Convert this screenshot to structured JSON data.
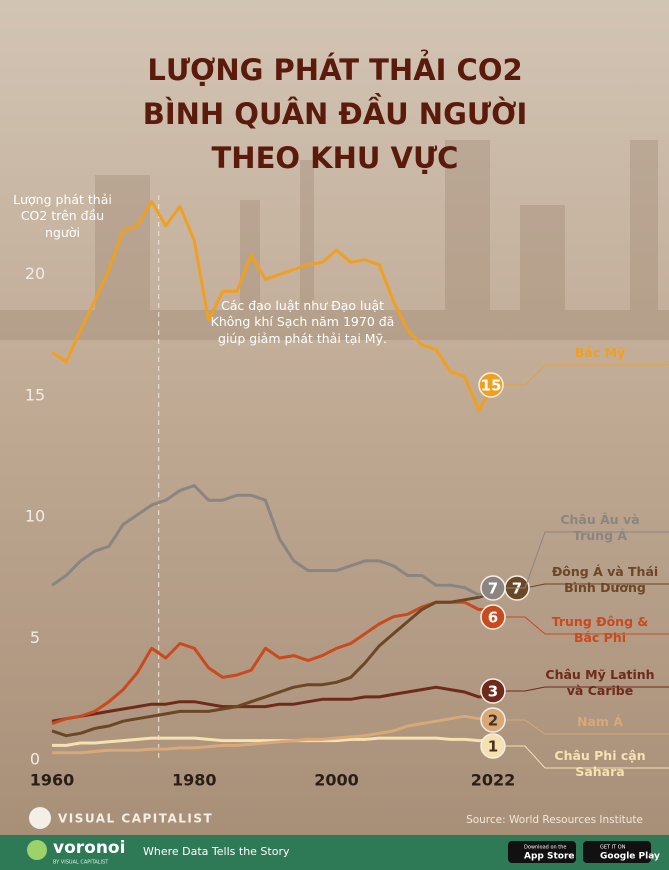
{
  "chart_data": {
    "type": "line",
    "title_lines": [
      "LƯỢNG PHÁT THẢI CO2",
      "BÌNH QUÂN ĐẦU NGƯỜI",
      "THEO KHU VỰC"
    ],
    "y_label": "Lượng phát thải CO2 trên đầu người",
    "annotation": "Các đạo luật như Đạo luật Không khí Sạch năm 1970 đã giúp giảm phát thải tại Mỹ.",
    "vline": 1975,
    "x": [
      1960,
      1962,
      1964,
      1966,
      1968,
      1970,
      1972,
      1974,
      1976,
      1978,
      1980,
      1982,
      1984,
      1986,
      1988,
      1990,
      1992,
      1994,
      1996,
      1998,
      2000,
      2002,
      2004,
      2006,
      2008,
      2010,
      2012,
      2014,
      2016,
      2018,
      2020,
      2022
    ],
    "xlim": [
      1960,
      2022
    ],
    "xticks": [
      1960,
      1980,
      2000,
      2022
    ],
    "ylim": [
      0,
      25
    ],
    "yticks": [
      0,
      5,
      10,
      15,
      20
    ],
    "series": [
      {
        "name": "Châu Phi cận Sahara",
        "color": "#f5e2b0",
        "end_label": "1",
        "values": [
          0.6,
          0.6,
          0.7,
          0.7,
          0.75,
          0.8,
          0.85,
          0.9,
          0.9,
          0.9,
          0.9,
          0.85,
          0.8,
          0.8,
          0.8,
          0.8,
          0.8,
          0.8,
          0.8,
          0.8,
          0.8,
          0.85,
          0.85,
          0.9,
          0.9,
          0.9,
          0.9,
          0.9,
          0.85,
          0.85,
          0.8,
          0.8
        ]
      },
      {
        "name": "Nam Á",
        "color": "#d9a878",
        "end_label": "2",
        "values": [
          0.3,
          0.3,
          0.3,
          0.35,
          0.4,
          0.4,
          0.4,
          0.45,
          0.45,
          0.5,
          0.5,
          0.55,
          0.6,
          0.6,
          0.65,
          0.7,
          0.75,
          0.8,
          0.85,
          0.85,
          0.9,
          0.95,
          1.0,
          1.1,
          1.2,
          1.4,
          1.5,
          1.6,
          1.7,
          1.8,
          1.7,
          1.9
        ]
      },
      {
        "name": "Châu Mỹ Latinh và Caribe",
        "color": "#6e2a1a",
        "end_label": "3",
        "values": [
          1.6,
          1.7,
          1.8,
          1.9,
          2.0,
          2.1,
          2.2,
          2.3,
          2.3,
          2.4,
          2.4,
          2.3,
          2.2,
          2.2,
          2.2,
          2.2,
          2.3,
          2.3,
          2.4,
          2.5,
          2.5,
          2.5,
          2.6,
          2.6,
          2.7,
          2.8,
          2.9,
          3.0,
          2.9,
          2.8,
          2.6,
          2.6
        ]
      },
      {
        "name": "Trung Đông & Bắc Phi",
        "color": "#c84a1e",
        "end_label": "6",
        "values": [
          1.5,
          1.7,
          1.8,
          2.0,
          2.4,
          2.9,
          3.6,
          4.6,
          4.2,
          4.8,
          4.6,
          3.8,
          3.4,
          3.5,
          3.7,
          4.6,
          4.2,
          4.3,
          4.1,
          4.3,
          4.6,
          4.8,
          5.2,
          5.6,
          5.9,
          6.0,
          6.3,
          6.5,
          6.5,
          6.5,
          6.2,
          6.2
        ]
      },
      {
        "name": "Đông Á và Thái Bình Dương",
        "color": "#6b4726",
        "end_label": "7",
        "values": [
          1.2,
          1.0,
          1.1,
          1.3,
          1.4,
          1.6,
          1.7,
          1.8,
          1.9,
          2.0,
          2.0,
          2.0,
          2.1,
          2.2,
          2.4,
          2.6,
          2.8,
          3.0,
          3.1,
          3.1,
          3.2,
          3.4,
          4.0,
          4.7,
          5.2,
          5.7,
          6.2,
          6.5,
          6.5,
          6.6,
          6.7,
          6.9
        ]
      },
      {
        "name": "Châu Âu và Trung Á",
        "color": "#8a8580",
        "end_label": "7",
        "values": [
          7.2,
          7.6,
          8.2,
          8.6,
          8.8,
          9.7,
          10.1,
          10.5,
          10.7,
          11.1,
          11.3,
          10.7,
          10.7,
          10.9,
          10.9,
          10.7,
          9.1,
          8.2,
          7.8,
          7.8,
          7.8,
          8.0,
          8.2,
          8.2,
          8.0,
          7.6,
          7.6,
          7.2,
          7.2,
          7.1,
          6.8,
          7.0
        ]
      },
      {
        "name": "Bắc Mỹ",
        "color": "#f0a020",
        "end_label": "15",
        "values": [
          16.8,
          16.4,
          17.7,
          18.9,
          20.2,
          21.8,
          22.0,
          23.0,
          22.0,
          22.8,
          21.4,
          18.1,
          19.3,
          19.3,
          20.8,
          19.8,
          20.0,
          20.2,
          20.4,
          20.5,
          21.0,
          20.5,
          20.6,
          20.4,
          18.9,
          17.7,
          17.1,
          16.9,
          16.0,
          15.8,
          14.4,
          15.4
        ]
      }
    ]
  },
  "footer": {
    "brand": "VISUAL CAPITALIST",
    "source": "Source: World Resources Institute"
  },
  "bar": {
    "logo": "voronoi",
    "logo_sub": "BY VISUAL CAPITALIST",
    "tagline": "Where Data Tells the Story",
    "app_store": {
      "small": "Download on the",
      "big": "App Store"
    },
    "google_play": {
      "small": "GET IT ON",
      "big": "Google Play"
    }
  }
}
